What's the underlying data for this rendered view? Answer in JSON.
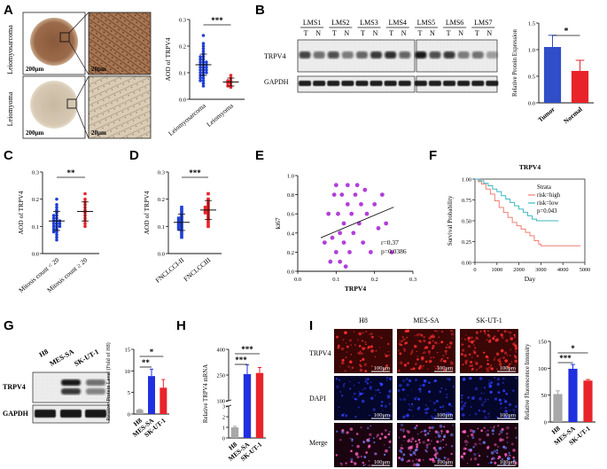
{
  "panels": {
    "A": {
      "letter": "A",
      "tissues": [
        "Leiomyosarcoma",
        "Leiomyoma"
      ],
      "scale_bar": "200μm",
      "zoom_scale_bar": "20μm"
    },
    "B": {
      "letter": "B",
      "lanes": [
        "LMS1",
        "LMS2",
        "LMS3",
        "LMS4",
        "LMS5",
        "LMS6",
        "LMS7"
      ],
      "lane_sub": [
        "T",
        "N"
      ],
      "blot_labels": [
        "TRPV4",
        "GAPDH"
      ]
    },
    "C": {
      "letter": "C"
    },
    "D": {
      "letter": "D"
    },
    "E": {
      "letter": "E"
    },
    "F": {
      "letter": "F"
    },
    "G": {
      "letter": "G",
      "lanes": [
        "H8",
        "MES-SA",
        "SK-UT-1"
      ],
      "blot_labels": [
        "TRPV4",
        "GAPDH"
      ]
    },
    "H": {
      "letter": "H"
    },
    "I": {
      "letter": "I",
      "columns": [
        "H8",
        "MES-SA",
        "SK-UT-1"
      ],
      "rows": [
        "TRPV4",
        "DAPI",
        "Merge"
      ],
      "scale_bar": "100μm"
    }
  },
  "chart_data": [
    {
      "id": "A_scatter",
      "type": "scatter",
      "ylabel": "AOD of TRPV4",
      "ylim": [
        0,
        0.3
      ],
      "yticks": [
        0.0,
        0.1,
        0.2,
        0.3
      ],
      "categories": [
        "Leiomyosarcoma",
        "Leiomyoma"
      ],
      "colors": [
        "#1f3fd6",
        "#e8242a"
      ],
      "significance": "***",
      "series": [
        {
          "name": "Leiomyosarcoma",
          "mean": 0.13,
          "sd": 0.04,
          "points": [
            0.24,
            0.21,
            0.2,
            0.19,
            0.18,
            0.17,
            0.16,
            0.16,
            0.15,
            0.15,
            0.14,
            0.14,
            0.14,
            0.13,
            0.13,
            0.13,
            0.12,
            0.12,
            0.12,
            0.11,
            0.11,
            0.11,
            0.1,
            0.1,
            0.1,
            0.09,
            0.09,
            0.08,
            0.08,
            0.07,
            0.07,
            0.06,
            0.05
          ]
        },
        {
          "name": "Leiomyoma",
          "mean": 0.065,
          "sd": 0.015,
          "points": [
            0.09,
            0.08,
            0.07,
            0.07,
            0.06,
            0.06,
            0.05,
            0.05,
            0.045
          ]
        }
      ]
    },
    {
      "id": "B_bar",
      "type": "bar",
      "ylabel": "Relative Protein Expression",
      "ylim": [
        0,
        1.5
      ],
      "yticks": [
        0.0,
        0.5,
        1.0,
        1.5
      ],
      "categories": [
        "Tumor",
        "Normal"
      ],
      "colors": [
        "#2f4ec8",
        "#e8242a"
      ],
      "values": [
        1.05,
        0.6
      ],
      "errors": [
        0.22,
        0.2
      ],
      "significance": "*"
    },
    {
      "id": "C_scatter",
      "type": "scatter",
      "ylabel": "AOD of TRPV4",
      "ylim": [
        0,
        0.3
      ],
      "yticks": [
        0.0,
        0.1,
        0.2,
        0.3
      ],
      "categories": [
        "Mitosis count < 20",
        "Mitosis count ≥ 20"
      ],
      "colors": [
        "#1f3fd6",
        "#e8242a"
      ],
      "significance": "**",
      "series": [
        {
          "name": "Mitosis count < 20",
          "mean": 0.12,
          "sd": 0.035,
          "points": [
            0.2,
            0.18,
            0.17,
            0.16,
            0.15,
            0.14,
            0.14,
            0.13,
            0.13,
            0.12,
            0.12,
            0.12,
            0.11,
            0.11,
            0.11,
            0.1,
            0.1,
            0.1,
            0.09,
            0.09,
            0.08,
            0.08,
            0.07,
            0.06,
            0.05
          ]
        },
        {
          "name": "Mitosis count ≥ 20",
          "mean": 0.155,
          "sd": 0.035,
          "points": [
            0.22,
            0.2,
            0.19,
            0.18,
            0.17,
            0.16,
            0.15,
            0.14,
            0.13,
            0.12,
            0.11,
            0.1
          ]
        }
      ]
    },
    {
      "id": "D_scatter",
      "type": "scatter",
      "ylabel": "AOD of TRPV4",
      "ylim": [
        0,
        0.3
      ],
      "yticks": [
        0.0,
        0.1,
        0.2,
        0.3
      ],
      "categories": [
        "FNCLCCI-II",
        "FNCLCCIII"
      ],
      "colors": [
        "#1f3fd6",
        "#e8242a"
      ],
      "significance": "***",
      "series": [
        {
          "name": "FNCLCCI-II",
          "mean": 0.115,
          "sd": 0.03,
          "points": [
            0.17,
            0.16,
            0.15,
            0.14,
            0.13,
            0.13,
            0.12,
            0.12,
            0.11,
            0.11,
            0.1,
            0.1,
            0.09,
            0.09,
            0.08,
            0.07,
            0.06
          ]
        },
        {
          "name": "FNCLCCIII",
          "mean": 0.16,
          "sd": 0.035,
          "points": [
            0.22,
            0.2,
            0.19,
            0.18,
            0.17,
            0.17,
            0.16,
            0.16,
            0.15,
            0.15,
            0.14,
            0.13,
            0.12,
            0.11,
            0.1
          ]
        }
      ]
    },
    {
      "id": "E_scatter",
      "type": "scatter",
      "xlabel": "TRPV4",
      "ylabel": "ki67",
      "xlim": [
        0,
        0.3
      ],
      "ylim": [
        0,
        1.0
      ],
      "xticks": [
        0.0,
        0.1,
        0.2,
        0.3
      ],
      "yticks": [
        0.0,
        0.2,
        0.4,
        0.6,
        0.8,
        1.0
      ],
      "color": "#b13fd9",
      "annotations": [
        "r=0.37",
        "p=0.0386"
      ],
      "fit": {
        "x": [
          0.06,
          0.25
        ],
        "y": [
          0.35,
          0.67
        ]
      },
      "points": [
        {
          "x": 0.07,
          "y": 0.3
        },
        {
          "x": 0.08,
          "y": 0.6
        },
        {
          "x": 0.085,
          "y": 0.1
        },
        {
          "x": 0.09,
          "y": 0.35
        },
        {
          "x": 0.095,
          "y": 0.8
        },
        {
          "x": 0.1,
          "y": 0.9
        },
        {
          "x": 0.1,
          "y": 0.2
        },
        {
          "x": 0.105,
          "y": 0.6
        },
        {
          "x": 0.11,
          "y": 0.4
        },
        {
          "x": 0.11,
          "y": 0.1
        },
        {
          "x": 0.115,
          "y": 0.8
        },
        {
          "x": 0.12,
          "y": 0.5
        },
        {
          "x": 0.12,
          "y": 0.3
        },
        {
          "x": 0.125,
          "y": 0.05
        },
        {
          "x": 0.13,
          "y": 0.9
        },
        {
          "x": 0.13,
          "y": 0.7
        },
        {
          "x": 0.135,
          "y": 0.2
        },
        {
          "x": 0.14,
          "y": 0.6
        },
        {
          "x": 0.145,
          "y": 0.4
        },
        {
          "x": 0.15,
          "y": 0.8
        },
        {
          "x": 0.155,
          "y": 0.9
        },
        {
          "x": 0.16,
          "y": 0.5
        },
        {
          "x": 0.165,
          "y": 0.7
        },
        {
          "x": 0.17,
          "y": 0.3
        },
        {
          "x": 0.175,
          "y": 0.85
        },
        {
          "x": 0.18,
          "y": 0.6
        },
        {
          "x": 0.19,
          "y": 0.2
        },
        {
          "x": 0.2,
          "y": 0.7
        },
        {
          "x": 0.21,
          "y": 0.45
        },
        {
          "x": 0.22,
          "y": 0.8
        },
        {
          "x": 0.23,
          "y": 0.5
        },
        {
          "x": 0.245,
          "y": 0.2
        }
      ]
    },
    {
      "id": "F_km",
      "type": "line",
      "title": "TRPV4",
      "xlabel": "Day",
      "ylabel": "Survival Probability",
      "xlim": [
        0,
        5000
      ],
      "ylim": [
        0,
        1.0
      ],
      "xticks": [
        0,
        1000,
        2000,
        3000,
        4000,
        5000
      ],
      "yticks": [
        0.0,
        0.25,
        0.5,
        0.75,
        1.0
      ],
      "legend_title": "Strata",
      "legend_position": "top-right",
      "annotation": "p=0.043",
      "series": [
        {
          "name": "risk=high",
          "color": "#f07f72",
          "points": [
            [
              0,
              1.0
            ],
            [
              150,
              0.97
            ],
            [
              300,
              0.94
            ],
            [
              500,
              0.88
            ],
            [
              700,
              0.82
            ],
            [
              900,
              0.74
            ],
            [
              1100,
              0.66
            ],
            [
              1300,
              0.6
            ],
            [
              1500,
              0.54
            ],
            [
              1700,
              0.48
            ],
            [
              1900,
              0.44
            ],
            [
              2100,
              0.4
            ],
            [
              2300,
              0.36
            ],
            [
              2500,
              0.32
            ],
            [
              2700,
              0.26
            ],
            [
              2900,
              0.22
            ],
            [
              3000,
              0.2
            ],
            [
              4800,
              0.2
            ]
          ]
        },
        {
          "name": "risk=low",
          "color": "#3cb8c2",
          "points": [
            [
              0,
              1.0
            ],
            [
              200,
              0.98
            ],
            [
              400,
              0.95
            ],
            [
              600,
              0.92
            ],
            [
              800,
              0.88
            ],
            [
              1000,
              0.85
            ],
            [
              1200,
              0.8
            ],
            [
              1400,
              0.76
            ],
            [
              1600,
              0.72
            ],
            [
              1800,
              0.68
            ],
            [
              2000,
              0.64
            ],
            [
              2200,
              0.6
            ],
            [
              2400,
              0.56
            ],
            [
              2600,
              0.52
            ],
            [
              2800,
              0.5
            ],
            [
              3800,
              0.5
            ]
          ]
        }
      ]
    },
    {
      "id": "G_bar",
      "type": "bar",
      "ylabel": "Relative Protein Level (Fold of H8)",
      "ylim": [
        0,
        15
      ],
      "yticks": [
        0,
        5,
        10,
        15
      ],
      "categories": [
        "H8",
        "MES-SA",
        "SK-UT-1"
      ],
      "colors": [
        "#a8a8a8",
        "#2030e0",
        "#e8242a"
      ],
      "values": [
        1.0,
        8.8,
        6.1
      ],
      "errors": [
        0.1,
        1.6,
        1.9
      ],
      "significance": [
        "**",
        "*"
      ]
    },
    {
      "id": "H_bar",
      "type": "bar",
      "ylabel": "Relative TRPV4 mRNA",
      "ylim": [
        0,
        400
      ],
      "yticks": [
        0,
        1,
        2,
        3,
        100,
        250,
        400
      ],
      "axis_break": true,
      "categories": [
        "H8",
        "MES-SA",
        "SK-UT-1"
      ],
      "colors": [
        "#a8a8a8",
        "#2030e0",
        "#e8242a"
      ],
      "values": [
        1.0,
        255,
        262
      ],
      "errors": [
        0.1,
        55,
        32
      ],
      "significance": [
        "***",
        "***"
      ]
    },
    {
      "id": "I_bar",
      "type": "bar",
      "ylabel": "Relative Fluorescence Intensity",
      "ylim": [
        0,
        150
      ],
      "yticks": [
        0,
        50,
        100,
        150
      ],
      "categories": [
        "H8",
        "MES-SA",
        "SK-UT-1"
      ],
      "colors": [
        "#a8a8a8",
        "#2030e0",
        "#e8242a"
      ],
      "values": [
        52,
        99,
        77
      ],
      "errors": [
        6,
        8,
        2
      ],
      "significance": [
        "***",
        "*"
      ]
    }
  ]
}
